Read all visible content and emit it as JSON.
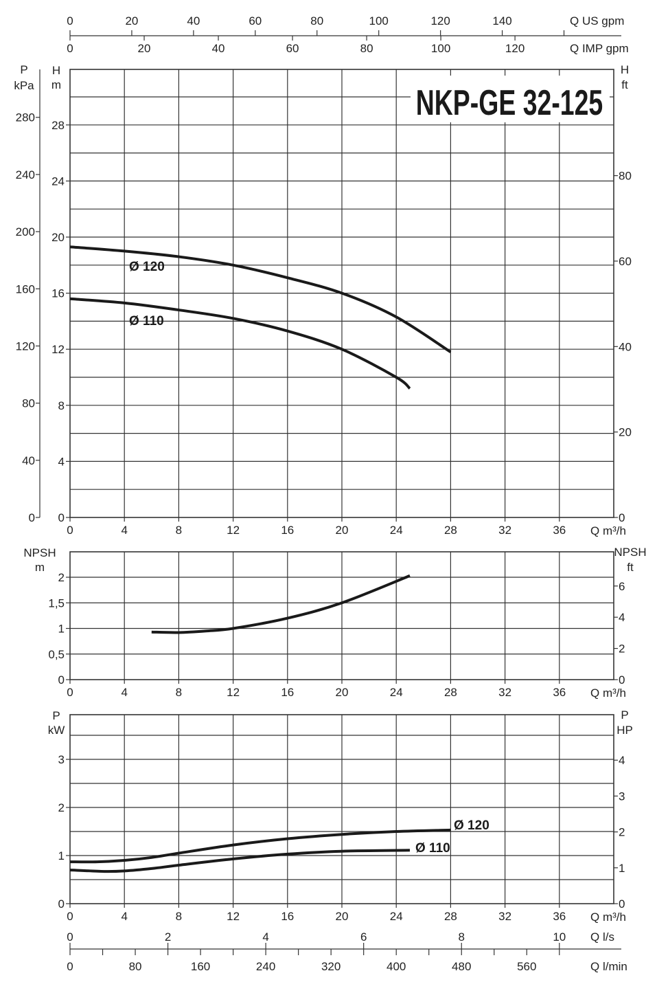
{
  "chart_data": [
    {
      "type": "line",
      "title": "NKP-GE 32-125",
      "name": "head",
      "xlabel": "Q m³/h",
      "ylabel_left": [
        "H",
        "m"
      ],
      "ylabel_pressure": [
        "P",
        "kPa"
      ],
      "ylabel_right": [
        "H",
        "ft"
      ],
      "xlim": [
        0,
        40
      ],
      "ylim": [
        0,
        32
      ],
      "grid": true,
      "x_ticks": [
        0,
        4,
        8,
        12,
        16,
        20,
        24,
        28,
        32,
        36
      ],
      "y_ticks": [
        0,
        4,
        8,
        12,
        16,
        20,
        24,
        28
      ],
      "kpa_ticks": [
        0,
        40,
        80,
        120,
        160,
        200,
        240,
        280
      ],
      "ft_ticks": [
        0,
        20,
        40,
        60,
        80
      ],
      "series": [
        {
          "name": "Ø 120",
          "x": [
            0,
            4,
            8,
            12,
            16,
            20,
            24,
            28
          ],
          "y": [
            19.3,
            19.0,
            18.6,
            18.0,
            17.1,
            16.0,
            14.3,
            11.8
          ]
        },
        {
          "name": "Ø 110",
          "x": [
            0,
            4,
            8,
            12,
            16,
            20,
            24,
            25
          ],
          "y": [
            15.6,
            15.3,
            14.8,
            14.2,
            13.3,
            12.0,
            10.0,
            9.2
          ]
        }
      ]
    },
    {
      "type": "line",
      "name": "npsh",
      "xlabel": "Q m³/h",
      "ylabel_left": [
        "NPSH",
        "m"
      ],
      "ylabel_right": [
        "NPSH",
        "ft"
      ],
      "xlim": [
        0,
        40
      ],
      "ylim": [
        0,
        2.5
      ],
      "grid": true,
      "x_ticks": [
        0,
        4,
        8,
        12,
        16,
        20,
        24,
        28,
        32,
        36
      ],
      "y_ticks": [
        "0",
        "0,5",
        "1",
        "1,5",
        "2"
      ],
      "ft_ticks": [
        0,
        2,
        4,
        6
      ],
      "series": [
        {
          "name": "NPSH",
          "x": [
            6,
            8,
            10,
            12,
            16,
            20,
            25
          ],
          "y": [
            0.93,
            0.92,
            0.95,
            1.0,
            1.2,
            1.5,
            2.03
          ]
        }
      ]
    },
    {
      "type": "line",
      "name": "power",
      "xlabel": "Q m³/h",
      "ylabel_left": [
        "P",
        "kW"
      ],
      "ylabel_right": [
        "P",
        "HP"
      ],
      "xlim": [
        0,
        40
      ],
      "ylim": [
        0,
        3.93
      ],
      "grid": true,
      "x_ticks": [
        0,
        4,
        8,
        12,
        16,
        20,
        24,
        28,
        32,
        36
      ],
      "y_ticks": [
        0,
        1,
        2,
        3
      ],
      "hp_ticks": [
        0,
        1,
        2,
        3,
        4
      ],
      "series": [
        {
          "name": "Ø 120",
          "x": [
            0,
            2,
            4,
            6,
            8,
            12,
            16,
            20,
            24,
            28
          ],
          "y": [
            0.87,
            0.87,
            0.9,
            0.96,
            1.05,
            1.22,
            1.35,
            1.44,
            1.5,
            1.53
          ]
        },
        {
          "name": "Ø 110",
          "x": [
            0,
            2.5,
            4,
            6,
            8,
            12,
            16,
            20,
            25
          ],
          "y": [
            0.7,
            0.67,
            0.68,
            0.73,
            0.8,
            0.93,
            1.03,
            1.09,
            1.11
          ]
        }
      ]
    }
  ],
  "axes": {
    "us_gpm": {
      "label": "Q US gpm",
      "ticks": [
        0,
        20,
        40,
        60,
        80,
        100,
        120,
        140
      ]
    },
    "imp_gpm": {
      "label": "Q IMP gpm",
      "ticks": [
        0,
        20,
        40,
        60,
        80,
        100,
        120
      ]
    },
    "ls": {
      "label": "Q l/s",
      "ticks": [
        0,
        2,
        4,
        6,
        8,
        10
      ]
    },
    "lmin": {
      "label": "Q l/min",
      "ticks": [
        0,
        80,
        160,
        240,
        320,
        400,
        480,
        560
      ]
    }
  }
}
